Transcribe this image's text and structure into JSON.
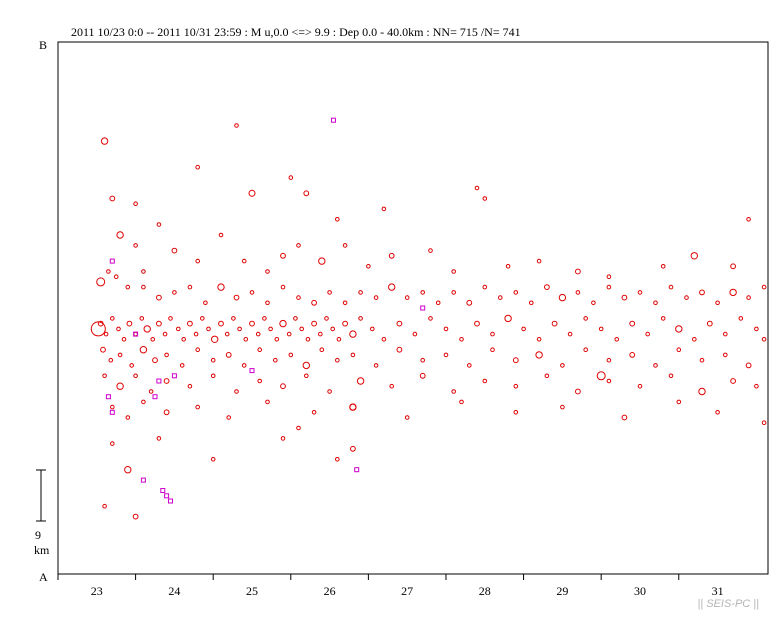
{
  "header": {
    "text": "2011 10/23 0:0 -- 2011 10/31 23:59  : M u,0.0 <=> 9.9   :  Dep 0.0 - 40.0km :  NN= 715 /N= 741"
  },
  "corner_labels": {
    "top": "B",
    "bottom": "A"
  },
  "scale_bar": {
    "value": "9",
    "unit": "km"
  },
  "watermark": "|| SEIS-PC ||",
  "chart_data": {
    "type": "scatter",
    "title": "",
    "xlabel": "",
    "ylabel": "",
    "x_ticks": [
      "23",
      "24",
      "25",
      "26",
      "27",
      "28",
      "29",
      "30",
      "31"
    ],
    "xlim_days": [
      22.5,
      31.65
    ],
    "ylim_km": [
      0,
      102
    ],
    "grid": false,
    "colors": {
      "main": "#e00000",
      "highlight": "#cc00cc",
      "axis": "#000000"
    },
    "series": [
      {
        "color": "#e00000",
        "points": [
          [
            23.1,
            83
          ],
          [
            23.5,
            71
          ],
          [
            24.3,
            78
          ],
          [
            24.8,
            86
          ],
          [
            25.5,
            76
          ],
          [
            25.7,
            73
          ],
          [
            26.1,
            68
          ],
          [
            26.7,
            70
          ],
          [
            28.0,
            72
          ],
          [
            27.9,
            74
          ],
          [
            23.2,
            72
          ],
          [
            23.3,
            65
          ],
          [
            23.5,
            63
          ],
          [
            23.6,
            58
          ],
          [
            23.8,
            67
          ],
          [
            24.0,
            62
          ],
          [
            24.3,
            60
          ],
          [
            24.6,
            65
          ],
          [
            24.9,
            60
          ],
          [
            25.2,
            58
          ],
          [
            25.4,
            61
          ],
          [
            25.6,
            63
          ],
          [
            25.9,
            60
          ],
          [
            26.2,
            63
          ],
          [
            26.5,
            59
          ],
          [
            26.8,
            61
          ],
          [
            27.3,
            62
          ],
          [
            27.6,
            58
          ],
          [
            28.3,
            59
          ],
          [
            28.7,
            60
          ],
          [
            29.2,
            58
          ],
          [
            29.6,
            57
          ],
          [
            30.3,
            59
          ],
          [
            30.7,
            61
          ],
          [
            31.4,
            68
          ],
          [
            31.2,
            59
          ],
          [
            23.15,
            58
          ],
          [
            23.25,
            57
          ],
          [
            23.4,
            55
          ],
          [
            23.6,
            55
          ],
          [
            23.8,
            53
          ],
          [
            24.0,
            54
          ],
          [
            24.2,
            55
          ],
          [
            24.4,
            52
          ],
          [
            24.6,
            55
          ],
          [
            24.8,
            53
          ],
          [
            25.0,
            54
          ],
          [
            25.2,
            52
          ],
          [
            25.4,
            55
          ],
          [
            25.6,
            53
          ],
          [
            25.8,
            52
          ],
          [
            26.0,
            54
          ],
          [
            26.2,
            52
          ],
          [
            26.4,
            54
          ],
          [
            26.6,
            53
          ],
          [
            26.8,
            55
          ],
          [
            27.0,
            53
          ],
          [
            27.2,
            54
          ],
          [
            27.4,
            52
          ],
          [
            27.6,
            54
          ],
          [
            27.8,
            52
          ],
          [
            28.0,
            55
          ],
          [
            28.2,
            53
          ],
          [
            28.4,
            54
          ],
          [
            28.6,
            52
          ],
          [
            28.8,
            55
          ],
          [
            29.0,
            53
          ],
          [
            29.2,
            54
          ],
          [
            29.4,
            52
          ],
          [
            29.6,
            55
          ],
          [
            29.8,
            53
          ],
          [
            30.0,
            54
          ],
          [
            30.2,
            52
          ],
          [
            30.4,
            55
          ],
          [
            30.6,
            53
          ],
          [
            30.8,
            54
          ],
          [
            31.0,
            52
          ],
          [
            31.2,
            54
          ],
          [
            31.4,
            53
          ],
          [
            31.6,
            55
          ],
          [
            23.05,
            48
          ],
          [
            23.12,
            46
          ],
          [
            23.2,
            49
          ],
          [
            23.28,
            47
          ],
          [
            23.35,
            45
          ],
          [
            23.42,
            48
          ],
          [
            23.5,
            46
          ],
          [
            23.58,
            49
          ],
          [
            23.65,
            47
          ],
          [
            23.72,
            45
          ],
          [
            23.8,
            48
          ],
          [
            23.88,
            46
          ],
          [
            23.95,
            49
          ],
          [
            24.05,
            47
          ],
          [
            24.12,
            45
          ],
          [
            24.2,
            48
          ],
          [
            24.28,
            46
          ],
          [
            24.36,
            49
          ],
          [
            24.44,
            47
          ],
          [
            24.52,
            45
          ],
          [
            24.6,
            48
          ],
          [
            24.68,
            46
          ],
          [
            24.76,
            49
          ],
          [
            24.84,
            47
          ],
          [
            24.92,
            45
          ],
          [
            25.0,
            48
          ],
          [
            25.08,
            46
          ],
          [
            25.16,
            49
          ],
          [
            25.24,
            47
          ],
          [
            25.32,
            45
          ],
          [
            25.4,
            48
          ],
          [
            25.48,
            46
          ],
          [
            25.56,
            49
          ],
          [
            25.64,
            47
          ],
          [
            25.72,
            45
          ],
          [
            25.8,
            48
          ],
          [
            25.88,
            46
          ],
          [
            25.96,
            49
          ],
          [
            26.04,
            47
          ],
          [
            26.12,
            45
          ],
          [
            26.2,
            48
          ],
          [
            26.3,
            46
          ],
          [
            26.4,
            49
          ],
          [
            26.55,
            47
          ],
          [
            26.7,
            45
          ],
          [
            26.9,
            48
          ],
          [
            27.1,
            46
          ],
          [
            27.3,
            49
          ],
          [
            27.5,
            47
          ],
          [
            27.7,
            45
          ],
          [
            27.9,
            48
          ],
          [
            28.1,
            46
          ],
          [
            28.3,
            49
          ],
          [
            28.5,
            47
          ],
          [
            28.7,
            45
          ],
          [
            28.9,
            48
          ],
          [
            29.1,
            46
          ],
          [
            29.3,
            49
          ],
          [
            29.5,
            47
          ],
          [
            29.7,
            45
          ],
          [
            29.9,
            48
          ],
          [
            30.1,
            46
          ],
          [
            30.3,
            49
          ],
          [
            30.5,
            47
          ],
          [
            30.7,
            45
          ],
          [
            30.9,
            48
          ],
          [
            31.1,
            46
          ],
          [
            31.3,
            49
          ],
          [
            31.5,
            47
          ],
          [
            31.6,
            45
          ],
          [
            23.08,
            43
          ],
          [
            23.18,
            41
          ],
          [
            23.3,
            42
          ],
          [
            23.45,
            40
          ],
          [
            23.6,
            43
          ],
          [
            23.75,
            41
          ],
          [
            23.9,
            42
          ],
          [
            24.1,
            40
          ],
          [
            24.3,
            43
          ],
          [
            24.5,
            41
          ],
          [
            24.7,
            42
          ],
          [
            24.9,
            40
          ],
          [
            25.1,
            43
          ],
          [
            25.3,
            41
          ],
          [
            25.5,
            42
          ],
          [
            25.7,
            40
          ],
          [
            25.9,
            43
          ],
          [
            26.1,
            41
          ],
          [
            26.3,
            42
          ],
          [
            26.6,
            40
          ],
          [
            26.9,
            43
          ],
          [
            27.2,
            41
          ],
          [
            27.5,
            42
          ],
          [
            27.8,
            40
          ],
          [
            28.1,
            43
          ],
          [
            28.4,
            41
          ],
          [
            28.7,
            42
          ],
          [
            29.0,
            40
          ],
          [
            29.3,
            43
          ],
          [
            29.6,
            41
          ],
          [
            29.9,
            42
          ],
          [
            30.2,
            40
          ],
          [
            30.5,
            43
          ],
          [
            30.8,
            41
          ],
          [
            31.1,
            42
          ],
          [
            31.4,
            40
          ],
          [
            23.1,
            38
          ],
          [
            23.3,
            36
          ],
          [
            23.5,
            38
          ],
          [
            23.7,
            35
          ],
          [
            23.9,
            37
          ],
          [
            24.2,
            36
          ],
          [
            24.5,
            38
          ],
          [
            24.8,
            35
          ],
          [
            25.1,
            37
          ],
          [
            25.4,
            36
          ],
          [
            25.7,
            38
          ],
          [
            26.0,
            35
          ],
          [
            26.4,
            37
          ],
          [
            26.8,
            36
          ],
          [
            27.2,
            38
          ],
          [
            27.6,
            35
          ],
          [
            28.0,
            37
          ],
          [
            28.4,
            36
          ],
          [
            28.8,
            38
          ],
          [
            29.2,
            35
          ],
          [
            29.6,
            37
          ],
          [
            30.0,
            36
          ],
          [
            30.4,
            38
          ],
          [
            30.8,
            35
          ],
          [
            31.2,
            37
          ],
          [
            31.5,
            36
          ],
          [
            23.2,
            32
          ],
          [
            23.4,
            30
          ],
          [
            23.6,
            33
          ],
          [
            23.9,
            31
          ],
          [
            24.3,
            32
          ],
          [
            24.7,
            30
          ],
          [
            25.2,
            33
          ],
          [
            25.8,
            31
          ],
          [
            26.3,
            32
          ],
          [
            27.0,
            30
          ],
          [
            27.7,
            33
          ],
          [
            28.4,
            31
          ],
          [
            29.0,
            32
          ],
          [
            29.8,
            30
          ],
          [
            30.5,
            33
          ],
          [
            31.0,
            31
          ],
          [
            31.6,
            29
          ],
          [
            23.2,
            25
          ],
          [
            23.5,
            11
          ],
          [
            23.4,
            20
          ],
          [
            23.8,
            26
          ],
          [
            24.5,
            22
          ],
          [
            25.4,
            26
          ],
          [
            26.3,
            24
          ],
          [
            26.1,
            22
          ],
          [
            25.6,
            28
          ],
          [
            23.1,
            13
          ]
        ]
      },
      {
        "color": "#cc00cc",
        "points": [
          [
            26.05,
            87
          ],
          [
            23.2,
            60
          ],
          [
            27.2,
            51
          ],
          [
            23.5,
            46
          ],
          [
            25.0,
            39
          ],
          [
            24.0,
            38
          ],
          [
            23.8,
            37
          ],
          [
            23.15,
            34
          ],
          [
            23.2,
            31
          ],
          [
            23.75,
            34
          ],
          [
            26.35,
            20
          ],
          [
            23.6,
            18
          ],
          [
            23.85,
            16
          ],
          [
            23.9,
            15
          ],
          [
            23.95,
            14
          ]
        ]
      }
    ]
  }
}
